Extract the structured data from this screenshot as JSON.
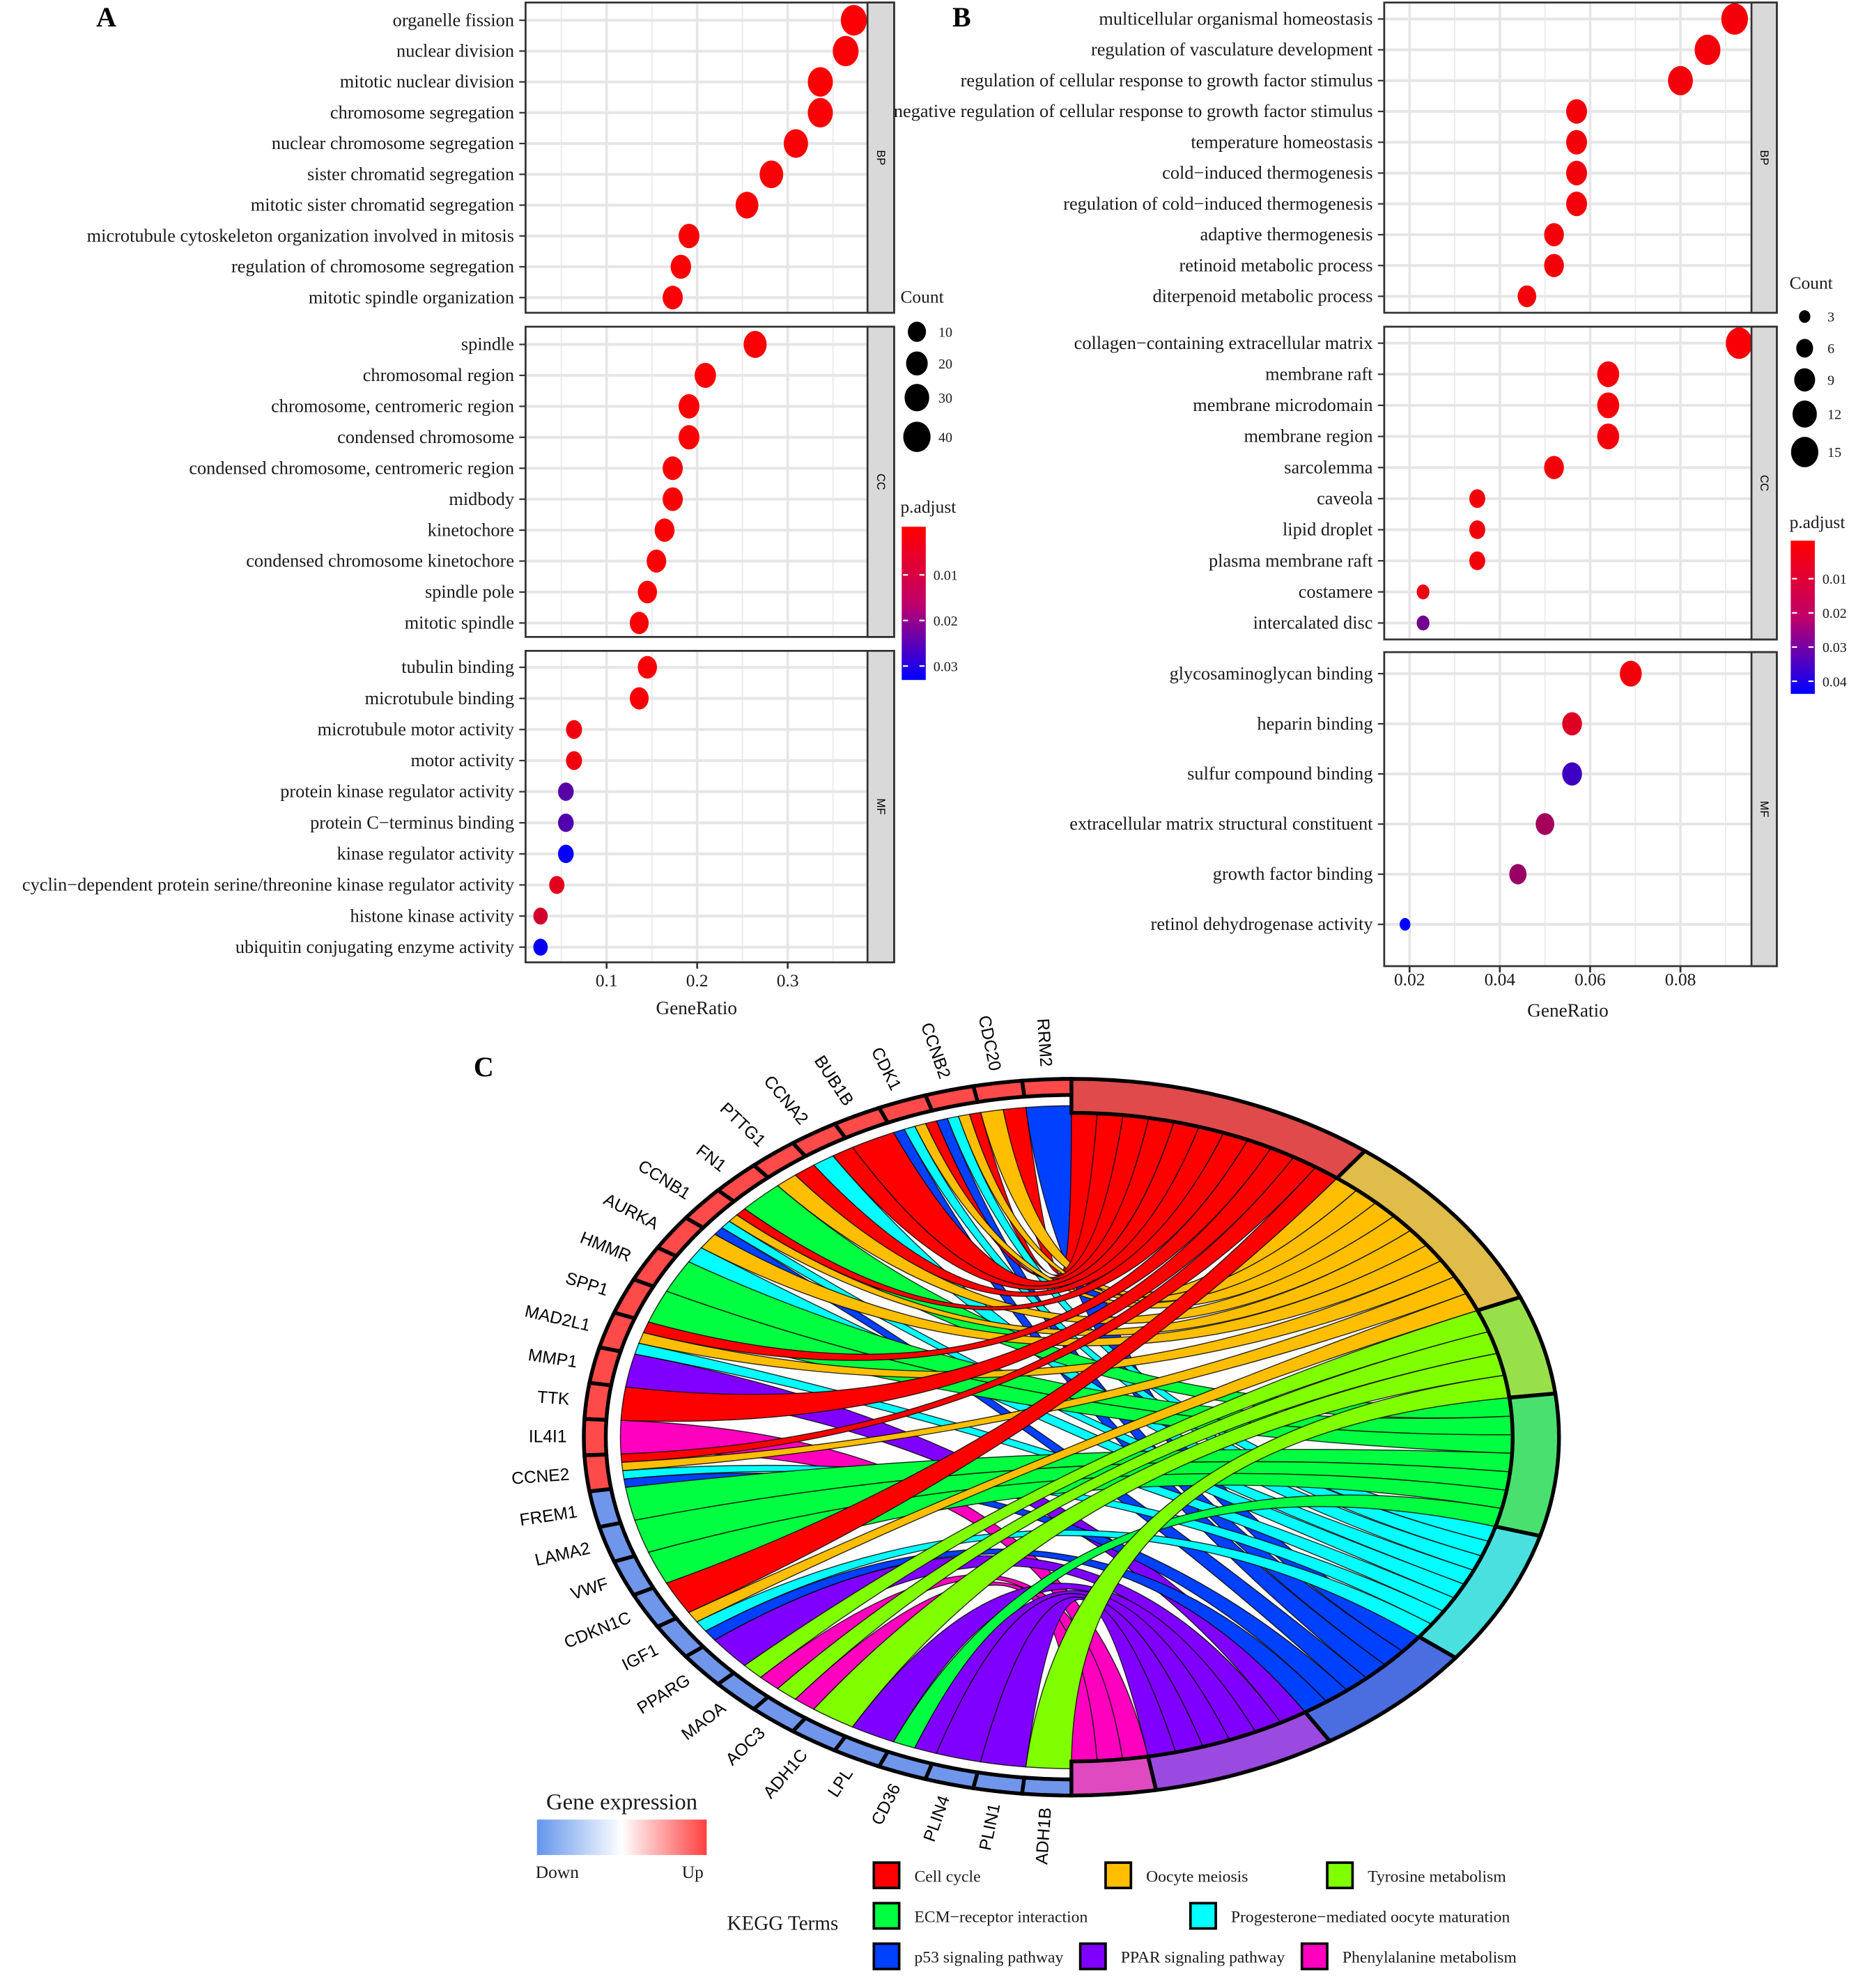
{
  "panel_labels": {
    "a": "A",
    "b": "B",
    "c": "C"
  },
  "chart_data": [
    {
      "type": "scatter",
      "subtype": "dot-plot",
      "panel": "A",
      "xlabel": "GeneRatio",
      "x_ticks": [
        "0.1",
        "0.2",
        "0.3"
      ],
      "x_tick_values": [
        0.1,
        0.2,
        0.3
      ],
      "grid": true,
      "legend_placement": "right",
      "size_legend": {
        "title": "Count",
        "values": [
          10,
          20,
          30,
          40
        ],
        "labels": [
          "10",
          "20",
          "30",
          "40"
        ]
      },
      "color_legend": {
        "title": "p.adjust",
        "ticks": [
          "0.01",
          "0.02",
          "0.03"
        ],
        "tick_values": [
          0.01,
          0.02,
          0.03
        ],
        "low_color": "#ff0000",
        "high_color": "#0000ff",
        "range": [
          0,
          0.035
        ]
      },
      "facets": [
        {
          "name": "BP",
          "terms": [
            {
              "term": "organelle fission",
              "gene_ratio": 0.373,
              "count": 41,
              "p_adjust": 0.0005
            },
            {
              "term": "nuclear division",
              "gene_ratio": 0.364,
              "count": 40,
              "p_adjust": 0.0005
            },
            {
              "term": "mitotic nuclear division",
              "gene_ratio": 0.336,
              "count": 37,
              "p_adjust": 0.0005
            },
            {
              "term": "chromosome segregation",
              "gene_ratio": 0.336,
              "count": 37,
              "p_adjust": 0.0005
            },
            {
              "term": "nuclear chromosome segregation",
              "gene_ratio": 0.309,
              "count": 34,
              "p_adjust": 0.0005
            },
            {
              "term": "sister chromatid segregation",
              "gene_ratio": 0.282,
              "count": 31,
              "p_adjust": 0.0005
            },
            {
              "term": "mitotic sister chromatid segregation",
              "gene_ratio": 0.255,
              "count": 28,
              "p_adjust": 0.0005
            },
            {
              "term": "microtubule cytoskeleton organization involved in mitosis",
              "gene_ratio": 0.191,
              "count": 21,
              "p_adjust": 0.0005
            },
            {
              "term": "regulation of chromosome segregation",
              "gene_ratio": 0.182,
              "count": 20,
              "p_adjust": 0.0005
            },
            {
              "term": "mitotic spindle organization",
              "gene_ratio": 0.173,
              "count": 19,
              "p_adjust": 0.0005
            }
          ]
        },
        {
          "name": "CC",
          "terms": [
            {
              "term": "spindle",
              "gene_ratio": 0.264,
              "count": 29,
              "p_adjust": 0.0005
            },
            {
              "term": "chromosomal region",
              "gene_ratio": 0.209,
              "count": 23,
              "p_adjust": 0.0005
            },
            {
              "term": "chromosome, centromeric region",
              "gene_ratio": 0.191,
              "count": 21,
              "p_adjust": 0.0005
            },
            {
              "term": "condensed chromosome",
              "gene_ratio": 0.191,
              "count": 21,
              "p_adjust": 0.0005
            },
            {
              "term": "condensed chromosome, centromeric region",
              "gene_ratio": 0.173,
              "count": 19,
              "p_adjust": 0.0005
            },
            {
              "term": "midbody",
              "gene_ratio": 0.173,
              "count": 19,
              "p_adjust": 0.0005
            },
            {
              "term": "kinetochore",
              "gene_ratio": 0.164,
              "count": 18,
              "p_adjust": 0.0005
            },
            {
              "term": "condensed chromosome kinetochore",
              "gene_ratio": 0.155,
              "count": 17,
              "p_adjust": 0.0005
            },
            {
              "term": "spindle pole",
              "gene_ratio": 0.145,
              "count": 16,
              "p_adjust": 0.0005
            },
            {
              "term": "mitotic spindle",
              "gene_ratio": 0.136,
              "count": 15,
              "p_adjust": 0.0005
            }
          ]
        },
        {
          "name": "MF",
          "terms": [
            {
              "term": "tubulin binding",
              "gene_ratio": 0.145,
              "count": 16,
              "p_adjust": 0.001
            },
            {
              "term": "microtubule binding",
              "gene_ratio": 0.136,
              "count": 15,
              "p_adjust": 0.001
            },
            {
              "term": "microtubule motor activity",
              "gene_ratio": 0.064,
              "count": 7,
              "p_adjust": 0.002
            },
            {
              "term": "motor activity",
              "gene_ratio": 0.064,
              "count": 7,
              "p_adjust": 0.002
            },
            {
              "term": "protein kinase regulator activity",
              "gene_ratio": 0.055,
              "count": 6,
              "p_adjust": 0.023
            },
            {
              "term": "protein C−terminus binding",
              "gene_ratio": 0.055,
              "count": 6,
              "p_adjust": 0.024
            },
            {
              "term": "kinase regulator activity",
              "gene_ratio": 0.055,
              "count": 6,
              "p_adjust": 0.034
            },
            {
              "term": "cyclin−dependent protein serine/threonine kinase regulator activity",
              "gene_ratio": 0.045,
              "count": 5,
              "p_adjust": 0.004
            },
            {
              "term": "histone kinase activity",
              "gene_ratio": 0.027,
              "count": 3,
              "p_adjust": 0.006
            },
            {
              "term": "ubiquitin conjugating enzyme activity",
              "gene_ratio": 0.027,
              "count": 3,
              "p_adjust": 0.034
            }
          ]
        }
      ]
    },
    {
      "type": "scatter",
      "subtype": "dot-plot",
      "panel": "B",
      "xlabel": "GeneRatio",
      "x_ticks": [
        "0.02",
        "0.04",
        "0.06",
        "0.08"
      ],
      "x_tick_values": [
        0.02,
        0.04,
        0.06,
        0.08
      ],
      "grid": true,
      "legend_placement": "right",
      "size_legend": {
        "title": "Count",
        "values": [
          3,
          6,
          9,
          12,
          15
        ],
        "labels": [
          "3",
          "6",
          "9",
          "12",
          "15"
        ]
      },
      "color_legend": {
        "title": "p.adjust",
        "ticks": [
          "0.01",
          "0.02",
          "0.03",
          "0.04"
        ],
        "tick_values": [
          0.01,
          0.02,
          0.03,
          0.04
        ],
        "low_color": "#ff0000",
        "high_color": "#0000ff",
        "range": [
          0,
          0.045
        ]
      },
      "facets": [
        {
          "name": "BP",
          "terms": [
            {
              "term": "multicellular organismal homeostasis",
              "gene_ratio": 0.092,
              "count": 16,
              "p_adjust": 0.002
            },
            {
              "term": "regulation of vasculature development",
              "gene_ratio": 0.086,
              "count": 15,
              "p_adjust": 0.002
            },
            {
              "term": "regulation of cellular response to growth factor stimulus",
              "gene_ratio": 0.08,
              "count": 14,
              "p_adjust": 0.002
            },
            {
              "term": "negative regulation of cellular response to growth factor stimulus",
              "gene_ratio": 0.057,
              "count": 10,
              "p_adjust": 0.002
            },
            {
              "term": "temperature homeostasis",
              "gene_ratio": 0.057,
              "count": 10,
              "p_adjust": 0.002
            },
            {
              "term": "cold−induced thermogenesis",
              "gene_ratio": 0.057,
              "count": 10,
              "p_adjust": 0.002
            },
            {
              "term": "regulation of cold−induced thermogenesis",
              "gene_ratio": 0.057,
              "count": 10,
              "p_adjust": 0.002
            },
            {
              "term": "adaptive thermogenesis",
              "gene_ratio": 0.052,
              "count": 9,
              "p_adjust": 0.002
            },
            {
              "term": "retinoid metabolic process",
              "gene_ratio": 0.052,
              "count": 9,
              "p_adjust": 0.002
            },
            {
              "term": "diterpenoid metabolic process",
              "gene_ratio": 0.046,
              "count": 8,
              "p_adjust": 0.002
            }
          ]
        },
        {
          "name": "CC",
          "terms": [
            {
              "term": "collagen−containing extracellular matrix",
              "gene_ratio": 0.093,
              "count": 16,
              "p_adjust": 0.001
            },
            {
              "term": "membrane raft",
              "gene_ratio": 0.064,
              "count": 11,
              "p_adjust": 0.002
            },
            {
              "term": "membrane microdomain",
              "gene_ratio": 0.064,
              "count": 11,
              "p_adjust": 0.002
            },
            {
              "term": "membrane region",
              "gene_ratio": 0.064,
              "count": 11,
              "p_adjust": 0.002
            },
            {
              "term": "sarcolemma",
              "gene_ratio": 0.052,
              "count": 9,
              "p_adjust": 0.002
            },
            {
              "term": "caveola",
              "gene_ratio": 0.035,
              "count": 6,
              "p_adjust": 0.002
            },
            {
              "term": "lipid droplet",
              "gene_ratio": 0.035,
              "count": 6,
              "p_adjust": 0.002
            },
            {
              "term": "plasma membrane raft",
              "gene_ratio": 0.035,
              "count": 6,
              "p_adjust": 0.002
            },
            {
              "term": "costamere",
              "gene_ratio": 0.023,
              "count": 4,
              "p_adjust": 0.003
            },
            {
              "term": "intercalated disc",
              "gene_ratio": 0.023,
              "count": 4,
              "p_adjust": 0.025
            }
          ]
        },
        {
          "name": "MF",
          "terms": [
            {
              "term": "glycosaminoglycan binding",
              "gene_ratio": 0.069,
              "count": 11,
              "p_adjust": 0.002
            },
            {
              "term": "heparin binding",
              "gene_ratio": 0.056,
              "count": 9,
              "p_adjust": 0.006
            },
            {
              "term": "sulfur compound binding",
              "gene_ratio": 0.056,
              "count": 9,
              "p_adjust": 0.034
            },
            {
              "term": "extracellular matrix structural constituent",
              "gene_ratio": 0.05,
              "count": 8,
              "p_adjust": 0.016
            },
            {
              "term": "growth factor binding",
              "gene_ratio": 0.044,
              "count": 7,
              "p_adjust": 0.018
            },
            {
              "term": "retinol dehydrogenase activity",
              "gene_ratio": 0.019,
              "count": 3,
              "p_adjust": 0.045
            }
          ]
        }
      ]
    },
    {
      "type": "chord",
      "panel": "C",
      "expression_legend": {
        "title": "Gene expression",
        "low_label": "Down",
        "high_label": "Up",
        "low_color": "#6495ed",
        "high_color": "#ff4040"
      },
      "terms_legend_title": "KEGG Terms",
      "terms": [
        {
          "name": "Cell cycle",
          "color": "#ff0000",
          "arc_color": "#e04a4a"
        },
        {
          "name": "Oocyte meiosis",
          "color": "#ffbf00",
          "arc_color": "#e0bc4a"
        },
        {
          "name": "Tyrosine metabolism",
          "color": "#80ff00",
          "arc_color": "#98e04a"
        },
        {
          "name": "ECM−receptor interaction",
          "color": "#00ff40",
          "arc_color": "#4ae070"
        },
        {
          "name": "Progesterone−mediated oocyte maturation",
          "color": "#00ffff",
          "arc_color": "#4ae0e0"
        },
        {
          "name": "p53 signaling pathway",
          "color": "#0040ff",
          "arc_color": "#4a6ee0"
        },
        {
          "name": "PPAR signaling pathway",
          "color": "#8000ff",
          "arc_color": "#9a4ae0"
        },
        {
          "name": "Phenylalanine metabolism",
          "color": "#ff00bf",
          "arc_color": "#e04ac0"
        }
      ],
      "genes": [
        {
          "gene": "RRM2",
          "expression": "up",
          "terms": [
            "p53 signaling pathway"
          ]
        },
        {
          "gene": "CDC20",
          "expression": "up",
          "terms": [
            "Cell cycle",
            "Oocyte meiosis"
          ]
        },
        {
          "gene": "CCNB2",
          "expression": "up",
          "terms": [
            "Cell cycle",
            "Oocyte meiosis",
            "Progesterone−mediated oocyte maturation",
            "p53 signaling pathway"
          ]
        },
        {
          "gene": "CDK1",
          "expression": "up",
          "terms": [
            "Cell cycle",
            "Oocyte meiosis",
            "Progesterone−mediated oocyte maturation",
            "p53 signaling pathway"
          ]
        },
        {
          "gene": "BUB1B",
          "expression": "up",
          "terms": [
            "Cell cycle"
          ]
        },
        {
          "gene": "CCNA2",
          "expression": "up",
          "terms": [
            "Cell cycle",
            "Progesterone−mediated oocyte maturation"
          ]
        },
        {
          "gene": "PTTG1",
          "expression": "up",
          "terms": [
            "Cell cycle",
            "Oocyte meiosis"
          ]
        },
        {
          "gene": "FN1",
          "expression": "up",
          "terms": [
            "ECM−receptor interaction"
          ]
        },
        {
          "gene": "CCNB1",
          "expression": "up",
          "terms": [
            "Cell cycle",
            "Oocyte meiosis",
            "Progesterone−mediated oocyte maturation",
            "p53 signaling pathway"
          ]
        },
        {
          "gene": "AURKA",
          "expression": "up",
          "terms": [
            "Oocyte meiosis",
            "Progesterone−mediated oocyte maturation"
          ]
        },
        {
          "gene": "HMMR",
          "expression": "up",
          "terms": [
            "ECM−receptor interaction"
          ]
        },
        {
          "gene": "SPP1",
          "expression": "up",
          "terms": [
            "ECM−receptor interaction"
          ]
        },
        {
          "gene": "MAD2L1",
          "expression": "up",
          "terms": [
            "Cell cycle",
            "Oocyte meiosis",
            "Progesterone−mediated oocyte maturation"
          ]
        },
        {
          "gene": "MMP1",
          "expression": "up",
          "terms": [
            "PPAR signaling pathway"
          ]
        },
        {
          "gene": "TTK",
          "expression": "up",
          "terms": [
            "Cell cycle"
          ]
        },
        {
          "gene": "IL4I1",
          "expression": "up",
          "terms": [
            "Phenylalanine metabolism"
          ]
        },
        {
          "gene": "CCNE2",
          "expression": "up",
          "terms": [
            "Cell cycle",
            "Oocyte meiosis",
            "Progesterone−mediated oocyte maturation",
            "p53 signaling pathway"
          ]
        },
        {
          "gene": "FREM1",
          "expression": "down",
          "terms": [
            "ECM−receptor interaction"
          ]
        },
        {
          "gene": "LAMA2",
          "expression": "down",
          "terms": [
            "ECM−receptor interaction"
          ]
        },
        {
          "gene": "VWF",
          "expression": "down",
          "terms": [
            "ECM−receptor interaction"
          ]
        },
        {
          "gene": "CDKN1C",
          "expression": "down",
          "terms": [
            "Cell cycle"
          ]
        },
        {
          "gene": "IGF1",
          "expression": "down",
          "terms": [
            "Oocyte meiosis",
            "Progesterone−mediated oocyte maturation",
            "p53 signaling pathway"
          ]
        },
        {
          "gene": "PPARG",
          "expression": "down",
          "terms": [
            "PPAR signaling pathway"
          ]
        },
        {
          "gene": "MAOA",
          "expression": "down",
          "terms": [
            "Tyrosine metabolism",
            "Phenylalanine metabolism"
          ]
        },
        {
          "gene": "AOC3",
          "expression": "down",
          "terms": [
            "Tyrosine metabolism",
            "Phenylalanine metabolism"
          ]
        },
        {
          "gene": "ADH1C",
          "expression": "down",
          "terms": [
            "Tyrosine metabolism"
          ]
        },
        {
          "gene": "LPL",
          "expression": "down",
          "terms": [
            "PPAR signaling pathway"
          ]
        },
        {
          "gene": "CD36",
          "expression": "down",
          "terms": [
            "ECM−receptor interaction",
            "PPAR signaling pathway"
          ]
        },
        {
          "gene": "PLIN4",
          "expression": "down",
          "terms": [
            "PPAR signaling pathway"
          ]
        },
        {
          "gene": "PLIN1",
          "expression": "down",
          "terms": [
            "PPAR signaling pathway"
          ]
        },
        {
          "gene": "ADH1B",
          "expression": "down",
          "terms": [
            "Tyrosine metabolism"
          ]
        }
      ]
    }
  ]
}
